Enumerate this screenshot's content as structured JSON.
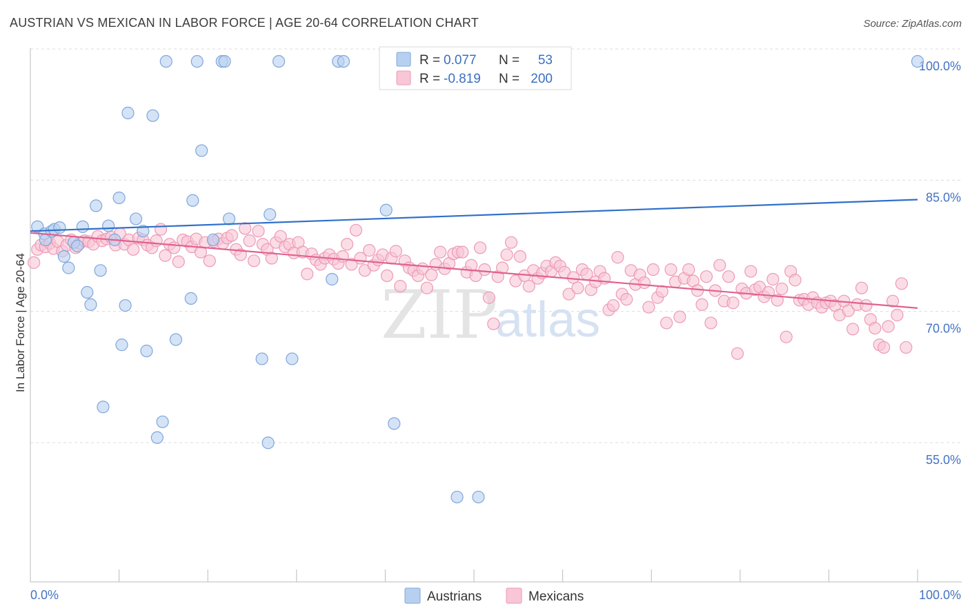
{
  "title": "AUSTRIAN VS MEXICAN IN LABOR FORCE | AGE 20-64 CORRELATION CHART",
  "source": "Source: ZipAtlas.com",
  "watermark": {
    "zip": "ZIP",
    "atlas": "atlas"
  },
  "legend": {
    "rows": [
      {
        "r_label": "R = ",
        "r_value": "0.077",
        "n_label": "N = ",
        "n_value": "53"
      },
      {
        "r_label": "R = ",
        "r_value": "-0.819",
        "n_label": "N = ",
        "n_value": "200"
      }
    ]
  },
  "colors": {
    "austrians_fill": "#b8d0f0",
    "austrians_stroke": "#7fa6dc",
    "austrians_line": "#2f6fca",
    "mexicans_fill": "#f8c6d6",
    "mexicans_stroke": "#ec9ab6",
    "mexicans_line": "#e0618f"
  },
  "chart_data": {
    "type": "scatter",
    "title": "AUSTRIAN VS MEXICAN IN LABOR FORCE | AGE 20-64 CORRELATION CHART",
    "xlabel": "",
    "ylabel": "In Labor Force | Age 20-64",
    "xlim": [
      0,
      100
    ],
    "ylim": [
      40.5,
      101.5
    ],
    "x_tick_labels": [
      "0.0%",
      "100.0%"
    ],
    "y_ticks": [
      100,
      85,
      70,
      55
    ],
    "y_tick_labels": [
      "100.0%",
      "85.0%",
      "70.0%",
      "55.0%"
    ],
    "grid": true,
    "legend_position": "bottom-center",
    "series": [
      {
        "name": "Austrians",
        "trend": [
          [
            0,
            80.6
          ],
          [
            100,
            84.2
          ]
        ],
        "points": [
          [
            0.8,
            81.1
          ],
          [
            1.6,
            80.3
          ],
          [
            1.7,
            79.6
          ],
          [
            2.4,
            80.6
          ],
          [
            2.7,
            80.8
          ],
          [
            3.3,
            81.0
          ],
          [
            3.8,
            77.7
          ],
          [
            4.3,
            76.4
          ],
          [
            4.9,
            79.3
          ],
          [
            5.3,
            78.9
          ],
          [
            5.9,
            81.1
          ],
          [
            6.4,
            73.6
          ],
          [
            6.8,
            72.2
          ],
          [
            7.4,
            83.5
          ],
          [
            7.9,
            76.1
          ],
          [
            8.2,
            60.5
          ],
          [
            8.8,
            81.2
          ],
          [
            9.5,
            79.6
          ],
          [
            10.0,
            84.4
          ],
          [
            10.3,
            67.6
          ],
          [
            10.7,
            72.1
          ],
          [
            11.0,
            94.1
          ],
          [
            11.9,
            82.0
          ],
          [
            12.7,
            80.6
          ],
          [
            13.1,
            66.9
          ],
          [
            13.8,
            93.8
          ],
          [
            14.3,
            57.0
          ],
          [
            14.9,
            58.8
          ],
          [
            15.3,
            100.0
          ],
          [
            16.4,
            68.2
          ],
          [
            18.1,
            72.9
          ],
          [
            18.3,
            84.1
          ],
          [
            18.8,
            100.0
          ],
          [
            19.3,
            89.8
          ],
          [
            20.6,
            79.6
          ],
          [
            21.6,
            100.0
          ],
          [
            21.9,
            100.0
          ],
          [
            22.4,
            82.0
          ],
          [
            26.1,
            66.0
          ],
          [
            26.8,
            56.4
          ],
          [
            27.0,
            82.5
          ],
          [
            28.0,
            100.0
          ],
          [
            29.5,
            66.0
          ],
          [
            34.0,
            75.1
          ],
          [
            34.7,
            100.0
          ],
          [
            35.3,
            100.0
          ],
          [
            40.1,
            83.0
          ],
          [
            41.0,
            58.6
          ],
          [
            48.1,
            50.2
          ],
          [
            50.5,
            50.2
          ],
          [
            100.0,
            100.0
          ]
        ]
      },
      {
        "name": "Mexicans",
        "trend": [
          [
            0,
            80.4
          ],
          [
            100,
            71.8
          ]
        ],
        "points": [
          [
            0.4,
            77.0
          ],
          [
            0.8,
            78.5
          ],
          [
            1.2,
            79.0
          ],
          [
            1.7,
            78.8
          ],
          [
            2.2,
            79.2
          ],
          [
            2.6,
            78.6
          ],
          [
            3.1,
            79.4
          ],
          [
            3.6,
            78.3
          ],
          [
            4.1,
            79.0
          ],
          [
            4.6,
            79.6
          ],
          [
            5.1,
            78.7
          ],
          [
            5.6,
            79.2
          ],
          [
            6.1,
            79.5
          ],
          [
            6.6,
            79.4
          ],
          [
            7.1,
            79.1
          ],
          [
            7.6,
            80.0
          ],
          [
            8.1,
            79.5
          ],
          [
            8.6,
            79.7
          ],
          [
            9.1,
            79.9
          ],
          [
            9.6,
            79.0
          ],
          [
            10.1,
            80.3
          ],
          [
            10.6,
            79.1
          ],
          [
            11.1,
            79.6
          ],
          [
            11.6,
            78.5
          ],
          [
            12.2,
            79.8
          ],
          [
            12.7,
            79.6
          ],
          [
            13.2,
            79.0
          ],
          [
            13.7,
            78.7
          ],
          [
            14.2,
            79.5
          ],
          [
            14.7,
            80.8
          ],
          [
            15.2,
            77.8
          ],
          [
            15.7,
            79.1
          ],
          [
            16.2,
            78.7
          ],
          [
            16.7,
            77.1
          ],
          [
            17.2,
            79.6
          ],
          [
            17.7,
            79.4
          ],
          [
            18.2,
            78.8
          ],
          [
            18.7,
            79.7
          ],
          [
            19.2,
            78.2
          ],
          [
            19.7,
            79.3
          ],
          [
            20.2,
            77.2
          ],
          [
            20.7,
            79.4
          ],
          [
            21.2,
            79.7
          ],
          [
            21.7,
            79.2
          ],
          [
            22.2,
            79.8
          ],
          [
            22.7,
            80.1
          ],
          [
            23.2,
            78.5
          ],
          [
            23.7,
            77.9
          ],
          [
            24.2,
            80.9
          ],
          [
            24.7,
            79.5
          ],
          [
            25.2,
            77.2
          ],
          [
            25.7,
            80.6
          ],
          [
            26.2,
            79.1
          ],
          [
            26.7,
            78.5
          ],
          [
            27.2,
            77.5
          ],
          [
            27.7,
            79.3
          ],
          [
            28.2,
            80.0
          ],
          [
            28.7,
            78.8
          ],
          [
            29.2,
            79.1
          ],
          [
            29.7,
            78.1
          ],
          [
            30.2,
            79.3
          ],
          [
            30.7,
            78.2
          ],
          [
            31.2,
            75.7
          ],
          [
            31.7,
            78.0
          ],
          [
            32.2,
            77.3
          ],
          [
            32.7,
            76.8
          ],
          [
            33.2,
            77.5
          ],
          [
            33.7,
            77.9
          ],
          [
            34.2,
            77.4
          ],
          [
            34.7,
            76.9
          ],
          [
            35.2,
            77.7
          ],
          [
            35.7,
            79.1
          ],
          [
            36.2,
            76.8
          ],
          [
            36.7,
            80.7
          ],
          [
            37.2,
            77.5
          ],
          [
            37.7,
            76.1
          ],
          [
            38.2,
            78.4
          ],
          [
            38.7,
            76.7
          ],
          [
            39.2,
            77.3
          ],
          [
            39.7,
            77.9
          ],
          [
            40.2,
            75.5
          ],
          [
            40.7,
            77.5
          ],
          [
            41.2,
            78.3
          ],
          [
            41.7,
            74.3
          ],
          [
            42.2,
            77.2
          ],
          [
            42.7,
            76.4
          ],
          [
            43.2,
            76.1
          ],
          [
            43.7,
            75.5
          ],
          [
            44.2,
            76.3
          ],
          [
            44.7,
            74.1
          ],
          [
            45.2,
            75.6
          ],
          [
            45.7,
            76.8
          ],
          [
            46.2,
            78.2
          ],
          [
            46.7,
            76.3
          ],
          [
            47.2,
            76.9
          ],
          [
            47.7,
            78.0
          ],
          [
            48.2,
            78.2
          ],
          [
            48.7,
            78.2
          ],
          [
            49.2,
            75.9
          ],
          [
            49.7,
            76.7
          ],
          [
            50.2,
            75.5
          ],
          [
            50.7,
            78.7
          ],
          [
            51.2,
            76.2
          ],
          [
            51.7,
            73.0
          ],
          [
            52.2,
            70.0
          ],
          [
            52.7,
            75.4
          ],
          [
            53.2,
            76.4
          ],
          [
            53.7,
            77.9
          ],
          [
            54.2,
            79.3
          ],
          [
            54.7,
            74.9
          ],
          [
            55.2,
            77.7
          ],
          [
            55.7,
            75.5
          ],
          [
            56.2,
            74.3
          ],
          [
            56.7,
            76.1
          ],
          [
            57.2,
            75.2
          ],
          [
            57.7,
            75.8
          ],
          [
            58.2,
            76.6
          ],
          [
            58.7,
            76.0
          ],
          [
            59.2,
            77.0
          ],
          [
            59.7,
            76.6
          ],
          [
            60.2,
            75.9
          ],
          [
            60.7,
            73.4
          ],
          [
            61.2,
            75.3
          ],
          [
            61.7,
            74.1
          ],
          [
            62.2,
            76.2
          ],
          [
            62.7,
            75.7
          ],
          [
            63.2,
            73.9
          ],
          [
            63.7,
            74.8
          ],
          [
            64.2,
            76.0
          ],
          [
            64.7,
            75.2
          ],
          [
            65.2,
            71.6
          ],
          [
            65.7,
            72.1
          ],
          [
            66.2,
            77.6
          ],
          [
            66.7,
            73.4
          ],
          [
            67.2,
            72.8
          ],
          [
            67.7,
            76.1
          ],
          [
            68.2,
            74.5
          ],
          [
            68.7,
            75.6
          ],
          [
            69.2,
            74.7
          ],
          [
            69.7,
            71.9
          ],
          [
            70.2,
            76.2
          ],
          [
            70.7,
            73.0
          ],
          [
            71.2,
            73.7
          ],
          [
            71.7,
            70.1
          ],
          [
            72.2,
            76.2
          ],
          [
            72.7,
            74.8
          ],
          [
            73.2,
            70.8
          ],
          [
            73.7,
            75.2
          ],
          [
            74.2,
            76.2
          ],
          [
            74.7,
            74.9
          ],
          [
            75.2,
            73.8
          ],
          [
            75.7,
            72.2
          ],
          [
            76.2,
            75.4
          ],
          [
            76.7,
            70.1
          ],
          [
            77.2,
            73.8
          ],
          [
            77.7,
            76.7
          ],
          [
            78.2,
            72.6
          ],
          [
            78.7,
            75.4
          ],
          [
            79.2,
            72.4
          ],
          [
            79.7,
            66.6
          ],
          [
            80.2,
            74.0
          ],
          [
            80.7,
            73.5
          ],
          [
            81.2,
            76.0
          ],
          [
            81.7,
            73.9
          ],
          [
            82.2,
            74.2
          ],
          [
            82.7,
            73.1
          ],
          [
            83.2,
            73.6
          ],
          [
            83.7,
            75.1
          ],
          [
            84.2,
            72.7
          ],
          [
            84.7,
            74.0
          ],
          [
            85.2,
            68.5
          ],
          [
            85.7,
            76.0
          ],
          [
            86.2,
            75.0
          ],
          [
            86.7,
            72.7
          ],
          [
            87.2,
            72.8
          ],
          [
            87.7,
            72.2
          ],
          [
            88.2,
            73.0
          ],
          [
            88.7,
            72.4
          ],
          [
            89.2,
            71.9
          ],
          [
            89.7,
            72.4
          ],
          [
            90.2,
            72.6
          ],
          [
            90.7,
            72.1
          ],
          [
            91.2,
            71.0
          ],
          [
            91.7,
            72.6
          ],
          [
            92.2,
            71.5
          ],
          [
            92.7,
            69.4
          ],
          [
            93.2,
            72.2
          ],
          [
            93.7,
            74.1
          ],
          [
            94.2,
            72.1
          ],
          [
            94.7,
            70.5
          ],
          [
            95.2,
            69.5
          ],
          [
            95.7,
            67.6
          ],
          [
            96.2,
            67.3
          ],
          [
            96.7,
            69.7
          ],
          [
            97.2,
            72.6
          ],
          [
            97.7,
            71.0
          ],
          [
            98.2,
            74.6
          ],
          [
            98.7,
            67.3
          ]
        ]
      }
    ]
  }
}
